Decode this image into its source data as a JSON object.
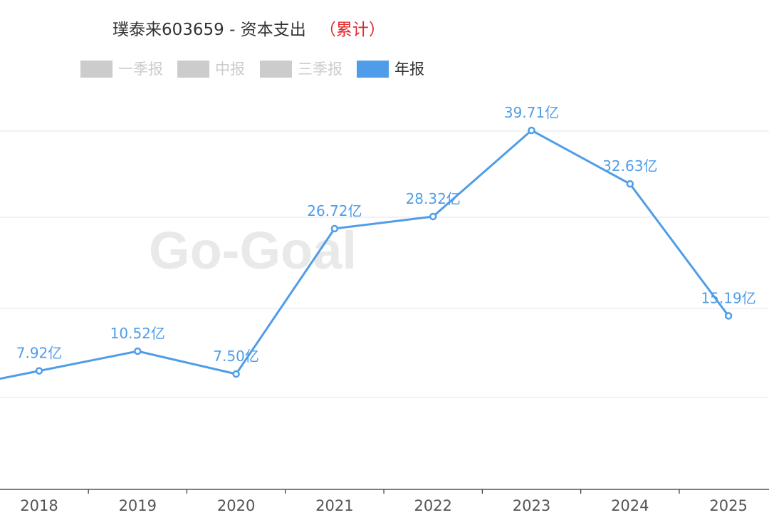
{
  "chart_data": {
    "type": "line",
    "title": "璞泰来603659 - 资本支出",
    "subtitle": "（累计）",
    "watermark": "Go-Goal",
    "legend": [
      {
        "label": "一季报",
        "active": false
      },
      {
        "label": "中报",
        "active": false
      },
      {
        "label": "三季报",
        "active": false
      },
      {
        "label": "年报",
        "active": true
      }
    ],
    "categories": [
      "2018",
      "2019",
      "2020",
      "2021",
      "2022",
      "2023",
      "2024",
      "2025"
    ],
    "series": [
      {
        "name": "年报",
        "values": [
          7.92,
          10.52,
          7.5,
          26.72,
          28.32,
          39.71,
          32.63,
          15.19
        ],
        "labels": [
          "7.92亿",
          "10.52亿",
          "7.50亿",
          "26.72亿",
          "28.32亿",
          "39.71亿",
          "32.63亿",
          "15.19亿"
        ]
      }
    ],
    "ylim": [
      -0.5,
      39.71
    ],
    "grid": true,
    "colors": {
      "line": "#4f9de8",
      "label": "#4f9de8",
      "inactive": "#cccccc",
      "subtitle": "#e0282e",
      "grid": "#e3e6ee"
    }
  }
}
